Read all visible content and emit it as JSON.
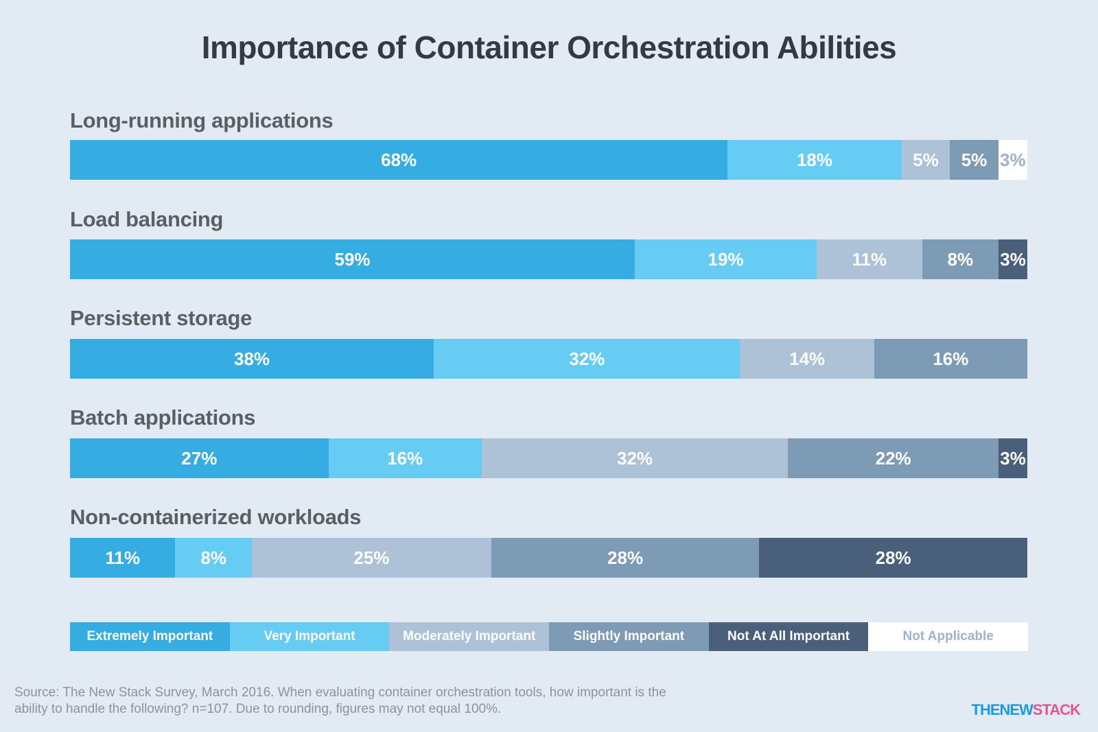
{
  "chart_data": {
    "type": "bar",
    "orientation": "horizontal-stacked-100",
    "title": "Importance of Container Orchestration Abilities",
    "categories": [
      "Long-running applications",
      "Load balancing",
      "Persistent storage",
      "Batch applications",
      "Non-containerized workloads"
    ],
    "series": [
      {
        "name": "Extremely Important",
        "color": "#35ace2",
        "values": [
          68,
          59,
          38,
          27,
          11
        ],
        "labels": [
          "68%",
          "59%",
          "38%",
          "27%",
          "11%"
        ]
      },
      {
        "name": "Very Important",
        "color": "#66ccf4",
        "values": [
          18,
          19,
          32,
          16,
          8
        ],
        "labels": [
          "18%",
          "19%",
          "32%",
          "16%",
          "8%"
        ]
      },
      {
        "name": "Moderately Important",
        "color": "#adc2d6",
        "values": [
          5,
          11,
          14,
          32,
          25
        ],
        "labels": [
          "5%",
          "11%",
          "14%",
          "32%",
          "25%"
        ]
      },
      {
        "name": "Slightly Important",
        "color": "#7e9bb5",
        "values": [
          5,
          8,
          16,
          22,
          28
        ],
        "labels": [
          "5%",
          "8%",
          "16%",
          "22%",
          "28%"
        ]
      },
      {
        "name": "Not At All Important",
        "color": "#4a5f7a",
        "values": [
          0,
          3,
          0,
          3,
          28
        ],
        "labels": [
          "",
          "3%",
          "",
          "3%",
          "28%"
        ]
      },
      {
        "name": "Not Applicable",
        "color": "#ffffff",
        "values": [
          3,
          0,
          0,
          0,
          0
        ],
        "labels": [
          "3%",
          "",
          "",
          "",
          ""
        ]
      }
    ],
    "legend_position": "bottom"
  },
  "source": "Source: The New Stack Survey, March 2016. When evaluating container orchestration tools, how important is the ability to handle the following? n=107. Due to rounding, figures may not equal 100%.",
  "logo": {
    "part1": "THENEW",
    "part2": "STACK"
  }
}
